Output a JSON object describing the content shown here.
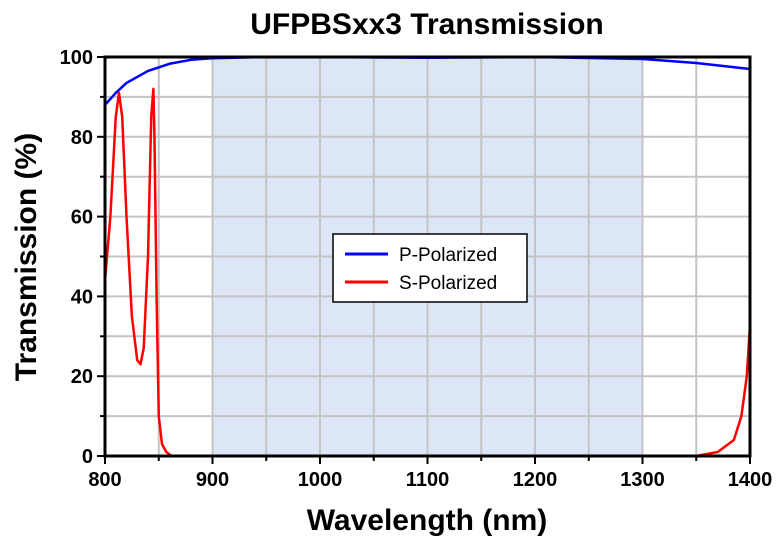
{
  "chart_data": {
    "type": "line",
    "title": "UFPBSxx3 Transmission",
    "xlabel": "Wavelength (nm)",
    "ylabel": "Transmission (%)",
    "xlim": [
      800,
      1400
    ],
    "ylim": [
      0,
      100
    ],
    "xticks": [
      800,
      900,
      1000,
      1100,
      1200,
      1300,
      1400
    ],
    "yticks": [
      0,
      20,
      40,
      60,
      80,
      100
    ],
    "grid": true,
    "shaded_region": {
      "from": 900,
      "to": 1300,
      "color": "#dce6f6"
    },
    "legend": {
      "placement": "center"
    },
    "series": [
      {
        "name": "P-Polarized",
        "color": "#0000ff",
        "x": [
          800,
          810,
          820,
          840,
          860,
          880,
          900,
          950,
          1000,
          1100,
          1200,
          1300,
          1350,
          1400
        ],
        "y": [
          88,
          91,
          93.5,
          96.5,
          98.3,
          99.3,
          99.7,
          100,
          100,
          99.8,
          100,
          99.5,
          98.5,
          97
        ]
      },
      {
        "name": "S-Polarized",
        "color": "#ff0000",
        "x": [
          800,
          805,
          810,
          813,
          816,
          820,
          825,
          830,
          833,
          836,
          840,
          843,
          845,
          846,
          848,
          850,
          853,
          857,
          862,
          1350,
          1370,
          1385,
          1392,
          1397,
          1400
        ],
        "y": [
          44,
          60,
          85,
          91,
          85,
          60,
          35,
          24,
          23,
          27,
          50,
          85,
          92,
          80,
          40,
          10,
          3,
          1,
          0,
          0,
          1,
          4,
          10,
          20,
          33
        ]
      }
    ]
  }
}
